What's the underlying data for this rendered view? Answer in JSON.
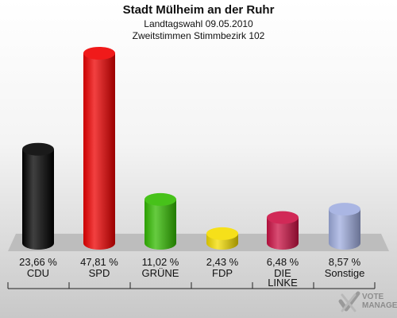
{
  "header": {
    "title": "Stadt Mülheim an der Ruhr",
    "subtitle": "Landtagswahl 09.05.2010",
    "subtitle2": "Zweitstimmen Stimmbezirk 102"
  },
  "chart_data": {
    "type": "bar",
    "title": "Stadt Mülheim an der Ruhr",
    "subtitle": "Landtagswahl 09.05.2010 / Zweitstimmen Stimmbezirk 102",
    "categories": [
      "CDU",
      "SPD",
      "GRÜNE",
      "FDP",
      "DIE LINKE",
      "Sonstige"
    ],
    "values": [
      23.66,
      47.81,
      11.02,
      2.43,
      6.48,
      8.57
    ],
    "value_labels": [
      "23,66 %",
      "47,81 %",
      "11,02 %",
      "2,43 %",
      "6,48 %",
      "8,57 %"
    ],
    "colors": [
      "#000000",
      "#ee0000",
      "#33bb00",
      "#f5dd00",
      "#cc1144",
      "#a0aee0"
    ],
    "unit": "%",
    "ylim": [
      0,
      50
    ],
    "grid": false,
    "legend": "none"
  },
  "cat_display": [
    "CDU",
    "SPD",
    "GRÜNE",
    "FDP",
    "DIE\nLINKE",
    "Sonstige"
  ],
  "brand": {
    "line1": "VOTE",
    "line2": "MANAGER"
  }
}
